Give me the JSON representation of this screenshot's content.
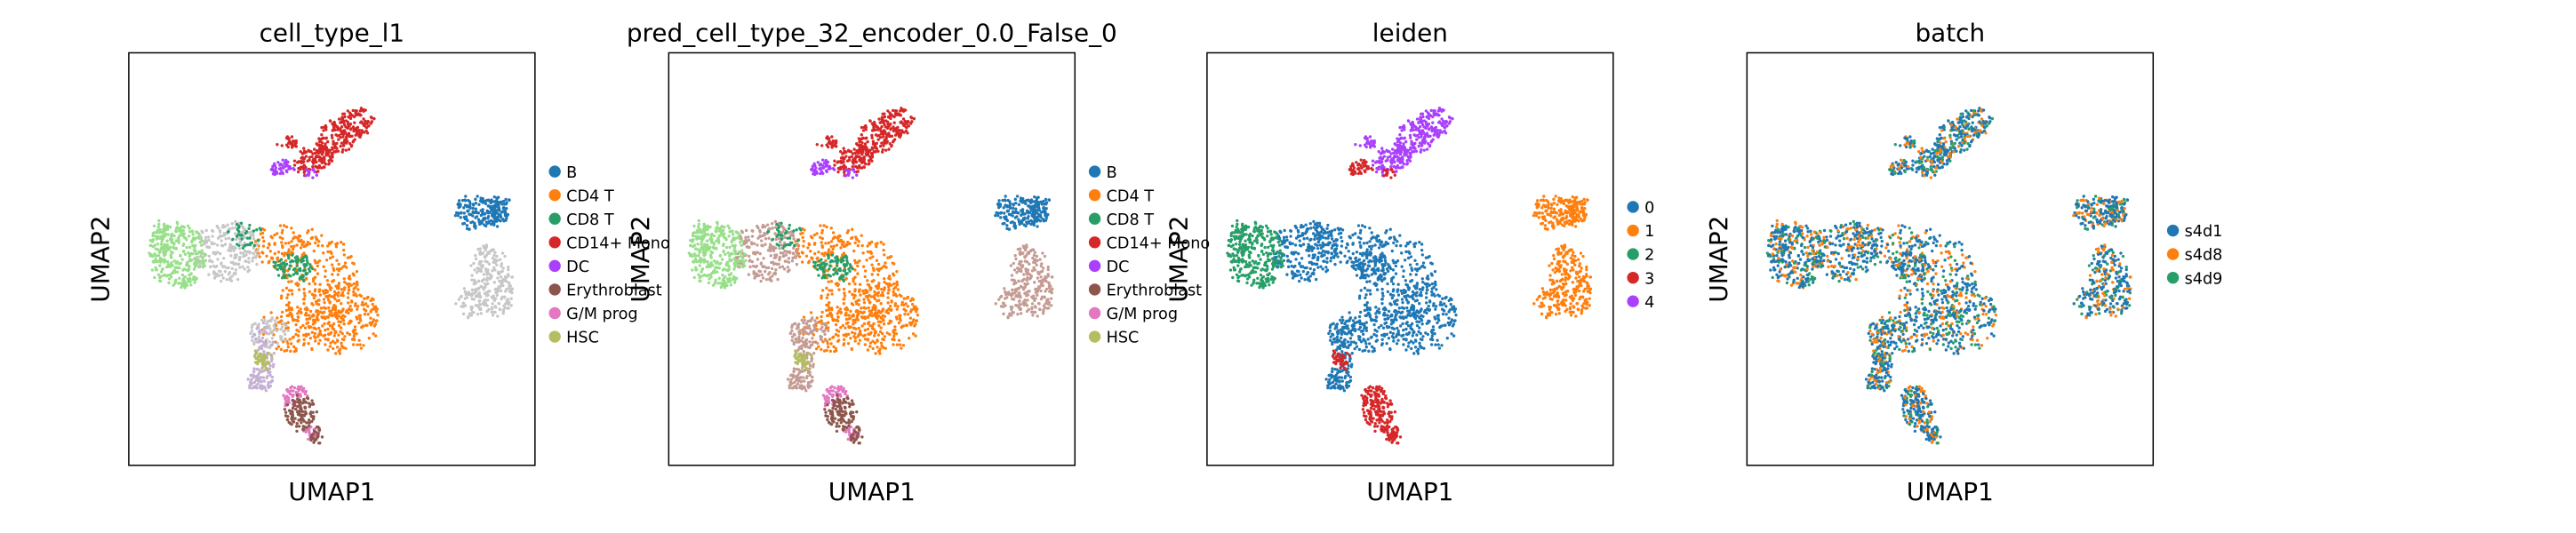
{
  "figure": {
    "background": "#ffffff"
  },
  "chart_data": [
    {
      "type": "scatter",
      "title": "cell_type_l1",
      "xlabel": "UMAP1",
      "ylabel": "UMAP2",
      "legend_position": "right",
      "series": [
        {
          "name": "B",
          "color": "#1f77b4"
        },
        {
          "name": "CD4 T",
          "color": "#ff7f0e"
        },
        {
          "name": "CD8 T",
          "color": "#279e68"
        },
        {
          "name": "CD14+ Mono",
          "color": "#d62728"
        },
        {
          "name": "DC",
          "color": "#aa40fc"
        },
        {
          "name": "Erythroblast",
          "color": "#8c564b"
        },
        {
          "name": "G/M prog",
          "color": "#e377c2"
        },
        {
          "name": "HSC",
          "color": "#b5bd61"
        }
      ]
    },
    {
      "type": "scatter",
      "title": "pred_cell_type_32_encoder_0.0_False_0",
      "xlabel": "UMAP1",
      "ylabel": "UMAP2",
      "legend_position": "right",
      "series": [
        {
          "name": "B",
          "color": "#1f77b4"
        },
        {
          "name": "CD4 T",
          "color": "#ff7f0e"
        },
        {
          "name": "CD8 T",
          "color": "#279e68"
        },
        {
          "name": "CD14+ Mono",
          "color": "#d62728"
        },
        {
          "name": "DC",
          "color": "#aa40fc"
        },
        {
          "name": "Erythroblast",
          "color": "#8c564b"
        },
        {
          "name": "G/M prog",
          "color": "#e377c2"
        },
        {
          "name": "HSC",
          "color": "#b5bd61"
        }
      ]
    },
    {
      "type": "scatter",
      "title": "leiden",
      "xlabel": "UMAP1",
      "ylabel": "UMAP2",
      "legend_position": "right",
      "series": [
        {
          "name": "0",
          "color": "#1f77b4"
        },
        {
          "name": "1",
          "color": "#ff7f0e"
        },
        {
          "name": "2",
          "color": "#279e68"
        },
        {
          "name": "3",
          "color": "#d62728"
        },
        {
          "name": "4",
          "color": "#aa40fc"
        }
      ]
    },
    {
      "type": "scatter",
      "title": "batch",
      "xlabel": "UMAP1",
      "ylabel": "UMAP2",
      "legend_position": "right",
      "series": [
        {
          "name": "s4d1",
          "color": "#1f77b4"
        },
        {
          "name": "s4d8",
          "color": "#ff7f0e"
        },
        {
          "name": "s4d9",
          "color": "#279e68"
        }
      ]
    }
  ]
}
